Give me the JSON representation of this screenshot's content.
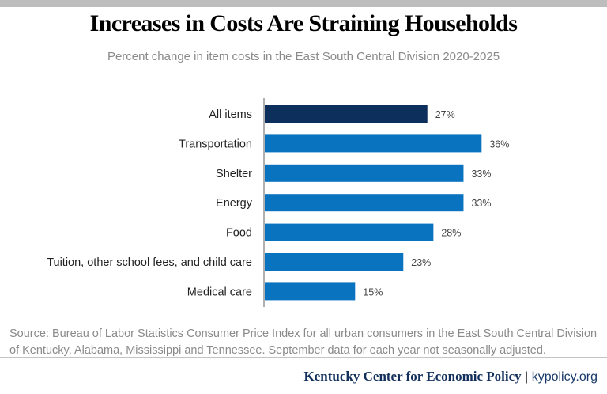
{
  "chart_data": {
    "type": "bar",
    "orientation": "horizontal",
    "title": "Increases in Costs Are Straining Households",
    "subtitle": "Percent change in item costs in the East South Central Division 2020-2025",
    "categories": [
      "All items",
      "Transportation",
      "Shelter",
      "Energy",
      "Food",
      "Tuition, other school fees, and child care",
      "Medical care"
    ],
    "values": [
      27,
      36,
      33,
      33,
      28,
      23,
      15
    ],
    "data_labels": [
      "27%",
      "36%",
      "33%",
      "33%",
      "28%",
      "23%",
      "15%"
    ],
    "unit": "%",
    "xlim": [
      0,
      40
    ],
    "grid": false,
    "colors": {
      "highlight": "#0d2f5c",
      "default": "#0a73bf",
      "axis": "#b0b0b0"
    },
    "highlight_index": 0
  },
  "source": {
    "line1": "Source: Bureau of Labor Statistics Consumer Price Index for all urban consumers in the East South Central Division",
    "line2": "of Kentucky, Alabama, Mississippi and Tennessee. September data for each year not seasonally adjusted."
  },
  "footer": {
    "org": "Kentucky Center for Economic Policy",
    "separator": "|",
    "site": "kypolicy.org"
  }
}
